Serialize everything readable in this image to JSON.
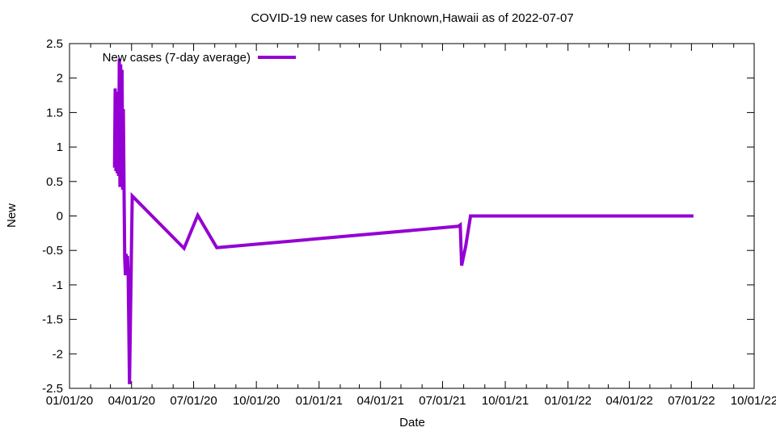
{
  "title": "COVID-19 new cases for Unknown,Hawaii as of 2022-07-07",
  "legend": {
    "label": "New cases (7-day average)"
  },
  "axes": {
    "x_label": "Date",
    "y_label": "New"
  },
  "colors": {
    "series": "#9400d3",
    "axis": "#000000",
    "background": "#ffffff"
  },
  "chart_data": {
    "type": "line",
    "title": "COVID-19 new cases for Unknown,Hawaii as of 2022-07-07",
    "xlabel": "Date",
    "ylabel": "New",
    "x_range": [
      "2020-01-01",
      "2022-10-01"
    ],
    "ylim": [
      -2.5,
      2.5
    ],
    "grid": false,
    "legend_position": "top-left-inside",
    "y_ticks": [
      {
        "label": "2.5",
        "value": 2.5
      },
      {
        "label": "2",
        "value": 2
      },
      {
        "label": "1.5",
        "value": 1.5
      },
      {
        "label": "1",
        "value": 1
      },
      {
        "label": "0.5",
        "value": 0.5
      },
      {
        "label": "0",
        "value": 0
      },
      {
        "label": "-0.5",
        "value": -0.5
      },
      {
        "label": "-1",
        "value": -1
      },
      {
        "label": "-1.5",
        "value": -1.5
      },
      {
        "label": "-2",
        "value": -2
      },
      {
        "label": "-2.5",
        "value": -2.5
      }
    ],
    "x_ticks": [
      {
        "label": "01/01/20",
        "date": "2020-01-01"
      },
      {
        "label": "04/01/20",
        "date": "2020-04-01"
      },
      {
        "label": "07/01/20",
        "date": "2020-07-01"
      },
      {
        "label": "10/01/20",
        "date": "2020-10-01"
      },
      {
        "label": "01/01/21",
        "date": "2021-01-01"
      },
      {
        "label": "04/01/21",
        "date": "2021-04-01"
      },
      {
        "label": "07/01/21",
        "date": "2021-07-01"
      },
      {
        "label": "10/01/21",
        "date": "2021-10-01"
      },
      {
        "label": "01/01/22",
        "date": "2022-01-01"
      },
      {
        "label": "04/01/22",
        "date": "2022-04-01"
      },
      {
        "label": "07/01/22",
        "date": "2022-07-01"
      },
      {
        "label": "10/01/22",
        "date": "2022-10-01"
      }
    ],
    "x_minor_ticks": "monthly",
    "series": [
      {
        "name": "New cases (7-day average)",
        "color": "#9400d3",
        "points": [
          [
            "2020-03-07",
            0.7
          ],
          [
            "2020-03-08",
            1.85
          ],
          [
            "2020-03-09",
            0.65
          ],
          [
            "2020-03-10",
            1.8
          ],
          [
            "2020-03-11",
            0.62
          ],
          [
            "2020-03-12",
            1.12
          ],
          [
            "2020-03-13",
            0.58
          ],
          [
            "2020-03-14",
            2.28
          ],
          [
            "2020-03-15",
            0.42
          ],
          [
            "2020-03-16",
            2.2
          ],
          [
            "2020-03-17",
            0.48
          ],
          [
            "2020-03-18",
            2.12
          ],
          [
            "2020-03-19",
            0.38
          ],
          [
            "2020-03-20",
            1.55
          ],
          [
            "2020-03-21",
            0.33
          ],
          [
            "2020-03-22",
            -0.62
          ],
          [
            "2020-03-23",
            -0.86
          ],
          [
            "2020-03-24",
            -0.55
          ],
          [
            "2020-03-25",
            -0.73
          ],
          [
            "2020-03-26",
            -0.58
          ],
          [
            "2020-03-27",
            -0.88
          ],
          [
            "2020-03-29",
            -2.44
          ],
          [
            "2020-04-02",
            0.29
          ],
          [
            "2020-06-17",
            -0.47
          ],
          [
            "2020-07-07",
            0.01
          ],
          [
            "2020-08-04",
            -0.46
          ],
          [
            "2021-07-24",
            -0.15
          ],
          [
            "2021-07-27",
            -0.13
          ],
          [
            "2021-07-29",
            -0.72
          ],
          [
            "2021-08-04",
            -0.44
          ],
          [
            "2021-08-11",
            0.0
          ],
          [
            "2022-07-04",
            0.0
          ]
        ]
      }
    ]
  }
}
